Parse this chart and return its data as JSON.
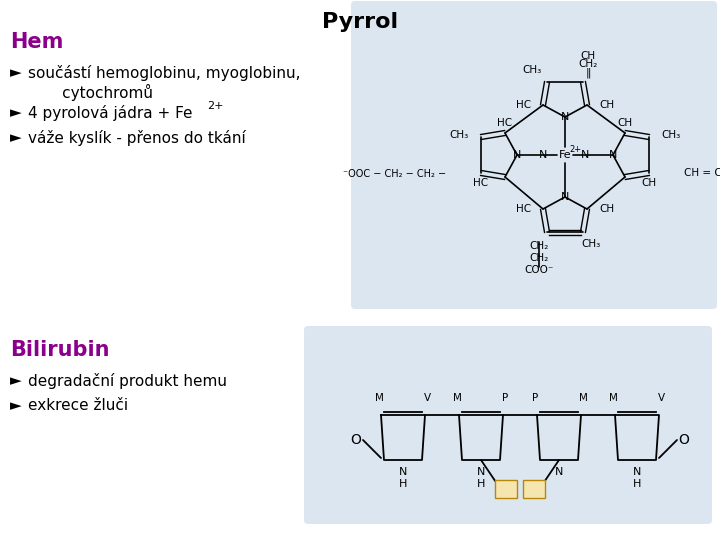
{
  "title": "Pyrrol",
  "title_color": "#000000",
  "bg_color": "#ffffff",
  "panel_bg": "#dce6f1",
  "hem_label": "Hem",
  "hem_color": "#8B008B",
  "bullet_color": "#000000",
  "bilirubin_label": "Bilirubin",
  "bilirubin_color": "#8B008B",
  "bullet1": "součástí hemoglobinu, myoglobinu,\n       cytochromů",
  "bullet2": "4 pyrolová jádra + Fe",
  "bullet2_super": "2+",
  "bullet3": "váže kyslík - přenos do tkání",
  "bbullet1": "degradační produkt hemu",
  "bbullet2": "exkrece žluči"
}
